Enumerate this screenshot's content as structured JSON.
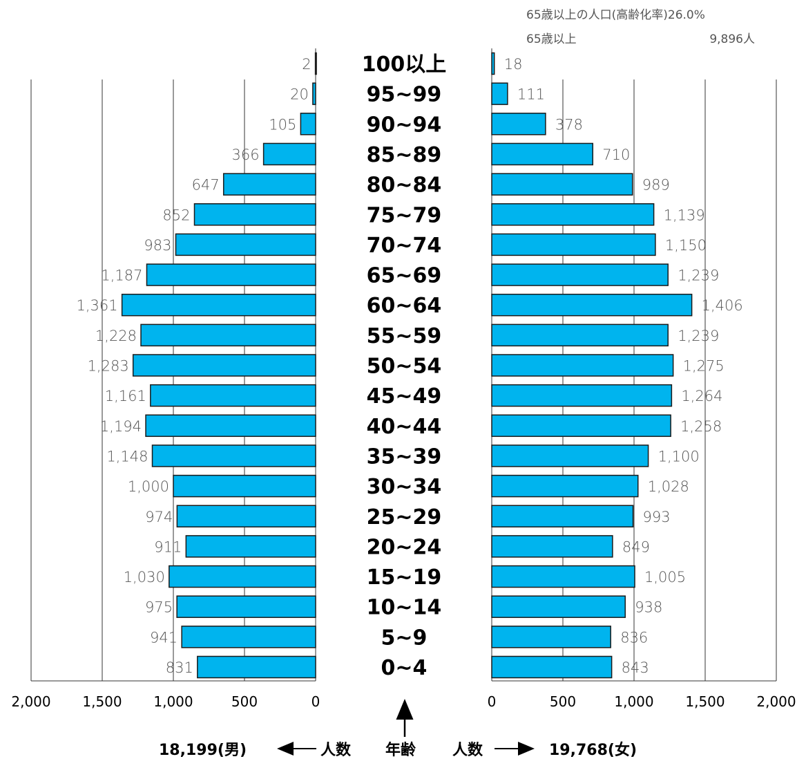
{
  "chart_data": {
    "type": "bar",
    "orientation": "population-pyramid",
    "categories": [
      "0~4",
      "5~9",
      "10~14",
      "15~19",
      "20~24",
      "25~29",
      "30~34",
      "35~39",
      "40~44",
      "45~49",
      "50~54",
      "55~59",
      "60~64",
      "65~69",
      "70~74",
      "75~79",
      "80~84",
      "85~89",
      "90~94",
      "95~99",
      "100以上"
    ],
    "series": [
      {
        "name": "男",
        "values": [
          831,
          941,
          975,
          1030,
          911,
          974,
          1000,
          1148,
          1194,
          1161,
          1283,
          1228,
          1361,
          1187,
          983,
          852,
          647,
          366,
          105,
          20,
          2
        ],
        "value_labels": [
          "831",
          "941",
          "975",
          "1,030",
          "911",
          "974",
          "1,000",
          "1,148",
          "1,194",
          "1,161",
          "1,283",
          "1,228",
          "1,361",
          "1,187",
          "983",
          "852",
          "647",
          "366",
          "105",
          "20",
          "2"
        ]
      },
      {
        "name": "女",
        "values": [
          843,
          836,
          938,
          1005,
          849,
          993,
          1028,
          1100,
          1258,
          1264,
          1275,
          1239,
          1406,
          1239,
          1150,
          1139,
          989,
          710,
          378,
          111,
          18
        ],
        "value_labels": [
          "843",
          "836",
          "938",
          "1,005",
          "849",
          "993",
          "1,028",
          "1,100",
          "1,258",
          "1,264",
          "1,275",
          "1,239",
          "1,406",
          "1,239",
          "1,150",
          "1,139",
          "989",
          "710",
          "378",
          "111",
          "18"
        ]
      }
    ],
    "xlim": [
      0,
      2000
    ],
    "x_ticks": [
      0,
      500,
      1000,
      1500,
      2000
    ],
    "x_tick_labels_left": [
      "0",
      "500",
      "1,000",
      "1,500",
      "2,000"
    ],
    "x_tick_labels_right": [
      "0",
      "500",
      "1,000",
      "1,500",
      "2,000"
    ],
    "bar_color": "#00b4ee",
    "grid": true
  },
  "notes": {
    "line1": "65歳以上の人口(高齢化率)26.0%",
    "line2_label": "65歳以上",
    "line2_value": "9,896人"
  },
  "footer": {
    "male_total": "18,199(男)",
    "left_label": "人数",
    "center_label": "年齢",
    "right_label": "人数",
    "female_total": "19,768(女)"
  }
}
